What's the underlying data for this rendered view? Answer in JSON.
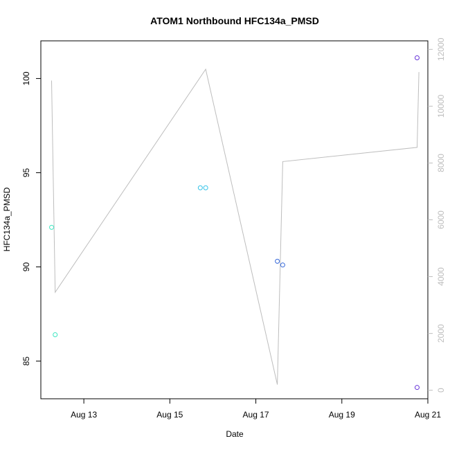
{
  "chart_data": {
    "type": "scatter",
    "title": "ATOM1 Northbound HFC134a_PMSD",
    "xlabel": "Date",
    "ylabel": "HFC134a_PMSD",
    "x_ticks": [
      {
        "date": "2023-08-13",
        "label": "Aug 13"
      },
      {
        "date": "2023-08-15",
        "label": "Aug 15"
      },
      {
        "date": "2023-08-17",
        "label": "Aug 17"
      },
      {
        "date": "2023-08-19",
        "label": "Aug 19"
      },
      {
        "date": "2023-08-21",
        "label": "Aug 21"
      }
    ],
    "x_range": [
      "2023-08-12T00:00",
      "2023-08-21T00:00"
    ],
    "y_left": {
      "range": [
        83.0,
        102.0
      ],
      "ticks": [
        85,
        90,
        95,
        100
      ]
    },
    "y_right": {
      "range": [
        -300,
        12300
      ],
      "ticks": [
        0,
        2000,
        4000,
        6000,
        8000,
        10000,
        12000
      ],
      "color": "#bdbdbd"
    },
    "points": [
      {
        "x": "2023-08-12T06:00",
        "y": 92.1,
        "color": "#3ee6c1"
      },
      {
        "x": "2023-08-12T08:00",
        "y": 86.4,
        "color": "#3ee6c1"
      },
      {
        "x": "2023-08-15T17:00",
        "y": 94.2,
        "color": "#34c3e8"
      },
      {
        "x": "2023-08-15T20:00",
        "y": 94.2,
        "color": "#34c3e8"
      },
      {
        "x": "2023-08-17T12:00",
        "y": 90.3,
        "color": "#3366d9"
      },
      {
        "x": "2023-08-17T15:00",
        "y": 90.1,
        "color": "#3366d9"
      },
      {
        "x": "2023-08-20T18:00",
        "y": 101.1,
        "color": "#6633d9"
      },
      {
        "x": "2023-08-20T18:00",
        "y": 83.6,
        "color": "#6633d9"
      }
    ],
    "line_series": {
      "color": "#bdbdbd",
      "points": [
        {
          "x": "2023-08-12T06:00",
          "y": 10900
        },
        {
          "x": "2023-08-12T08:00",
          "y": 3450
        },
        {
          "x": "2023-08-15T20:00",
          "y": 11300
        },
        {
          "x": "2023-08-17T12:00",
          "y": 200
        },
        {
          "x": "2023-08-17T15:00",
          "y": 8050
        },
        {
          "x": "2023-08-20T18:00",
          "y": 8550
        },
        {
          "x": "2023-08-20T19:00",
          "y": 11200
        }
      ]
    }
  }
}
